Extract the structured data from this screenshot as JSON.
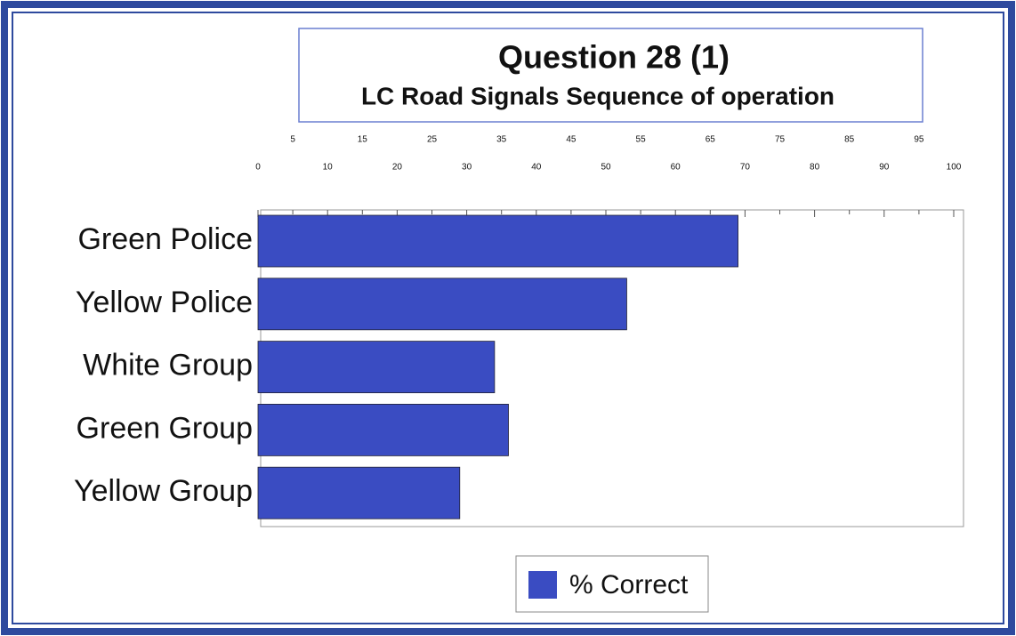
{
  "chart_data": {
    "type": "bar",
    "orientation": "horizontal",
    "title": "Question 28 (1)",
    "subtitle": "LC Road Signals Sequence of operation",
    "categories": [
      "Green Police",
      "Yellow Police",
      "White Group",
      "Green Group",
      "Yellow Group"
    ],
    "series": [
      {
        "name": "% Correct",
        "color": "#3a4cc2",
        "values": [
          69,
          53,
          34,
          36,
          29
        ]
      }
    ],
    "xlim": [
      0,
      100
    ],
    "xticks": [
      0,
      5,
      10,
      15,
      20,
      25,
      30,
      35,
      40,
      45,
      50,
      55,
      60,
      65,
      70,
      75,
      80,
      85,
      90,
      95,
      100
    ],
    "legend": "bottom"
  }
}
